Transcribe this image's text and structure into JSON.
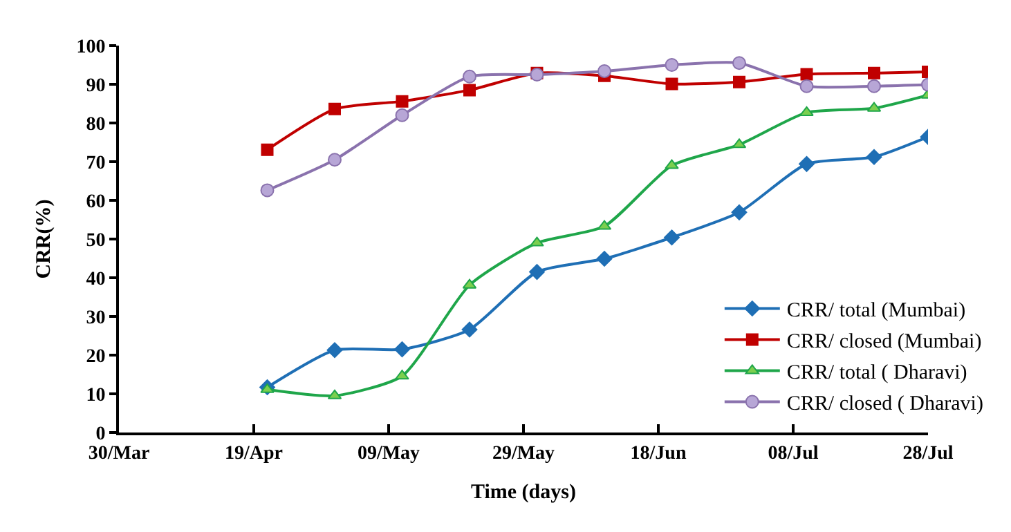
{
  "chart_data": {
    "type": "line",
    "xlabel": "Time (days)",
    "ylabel": "CRR(%)",
    "x": [
      "--04-21",
      "--05-01",
      "--05-11",
      "--05-21",
      "--05-31",
      "--06-10",
      "--06-20",
      "--06-30",
      "--07-10",
      "--07-20",
      "--07-28"
    ],
    "series": [
      {
        "name": "CRR/ total (Mumbai)",
        "color": "#1f6fb5",
        "marker": "diamond",
        "values": [
          11.7,
          21.3,
          21.5,
          26.6,
          41.5,
          44.9,
          50.4,
          56.9,
          69.4,
          71.2,
          76.4
        ]
      },
      {
        "name": "CRR/ closed (Mumbai)",
        "color": "#c00000",
        "marker": "square",
        "values": [
          73.1,
          83.6,
          85.6,
          88.5,
          92.9,
          92.2,
          90.1,
          90.6,
          92.6,
          92.9,
          93.2
        ]
      },
      {
        "name": "CRR/ total ( Dharavi)",
        "color": "#1fa64a",
        "marker": "triangle",
        "values": [
          11.1,
          9.5,
          14.6,
          38.1,
          49.0,
          53.3,
          69.0,
          74.4,
          82.7,
          83.8,
          87.2
        ]
      },
      {
        "name": "CRR/ closed ( Dharavi)",
        "color": "#8a72ad",
        "marker": "circle",
        "values": [
          62.6,
          70.5,
          82.0,
          92.0,
          92.5,
          93.4,
          95.0,
          95.5,
          89.5,
          89.5,
          89.9
        ]
      }
    ],
    "xlim": [
      "--03-30",
      "--07-28"
    ],
    "xticks": [
      {
        "value": "--03-30",
        "label": "30/Mar"
      },
      {
        "value": "--04-19",
        "label": "19/Apr"
      },
      {
        "value": "--05-09",
        "label": "09/May"
      },
      {
        "value": "--05-29",
        "label": "29/May"
      },
      {
        "value": "--06-18",
        "label": "18/Jun"
      },
      {
        "value": "--07-08",
        "label": "08/Jul"
      },
      {
        "value": "--07-28",
        "label": "28/Jul"
      }
    ],
    "ylim": [
      0,
      100
    ],
    "yticks": [
      0,
      10,
      20,
      30,
      40,
      50,
      60,
      70,
      80,
      90,
      100
    ],
    "legend": "right",
    "line_style": "solid"
  }
}
